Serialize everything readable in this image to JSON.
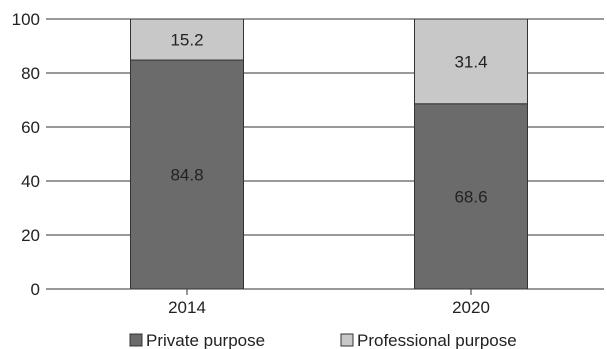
{
  "chart_data": {
    "type": "bar",
    "stacked": true,
    "categories": [
      "2014",
      "2020"
    ],
    "series": [
      {
        "name": "Private purpose",
        "values": [
          84.8,
          68.6
        ],
        "labels": [
          "84.8",
          "68.6"
        ],
        "color": "#6b6b6b"
      },
      {
        "name": "Professional purpose",
        "values": [
          15.2,
          31.4
        ],
        "labels": [
          "15.2",
          "31.4"
        ],
        "color": "#c8c8c8"
      }
    ],
    "ylim": [
      0,
      100
    ],
    "yticks": [
      0,
      20,
      40,
      60,
      80,
      100
    ],
    "ytick_labels": [
      "0",
      "20",
      "40",
      "60",
      "80",
      "100"
    ],
    "grid": true,
    "legend_position": "bottom",
    "title": "",
    "xlabel": "",
    "ylabel": ""
  },
  "colors": {
    "grid": "#333333",
    "bar_outline": "#333333",
    "text": "#222222"
  }
}
